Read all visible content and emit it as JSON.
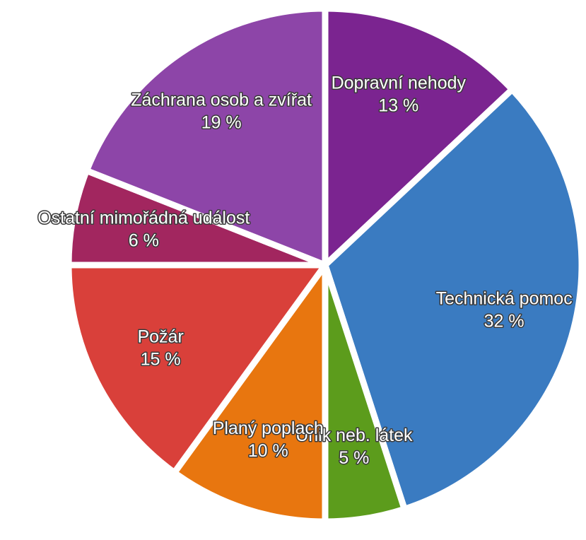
{
  "chart_data": {
    "type": "pie",
    "categories": [
      "Dopravní nehody",
      "Technická pomoc",
      "Únik neb. látek",
      "Planý poplach",
      "Požár",
      "Ostatní mimořádná událost",
      "Záchrana osob a zvířat"
    ],
    "values": [
      13,
      32,
      5,
      10,
      15,
      6,
      19
    ],
    "value_labels": [
      "13 %",
      "32 %",
      "5 %",
      "10 %",
      "15 %",
      "6 %",
      "19 %"
    ],
    "colors": [
      "#7b2490",
      "#3a7bc1",
      "#5c9c1c",
      "#e8760f",
      "#d9403a",
      "#a2265f",
      "#8d45a8"
    ]
  }
}
